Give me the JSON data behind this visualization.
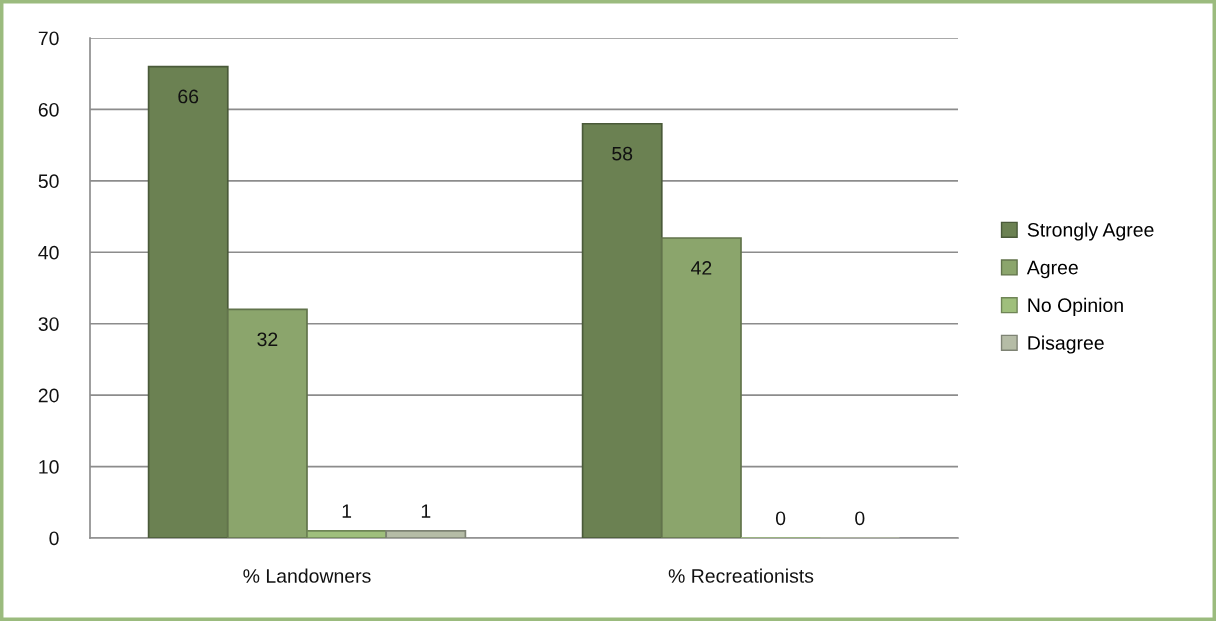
{
  "chart_data": {
    "type": "bar",
    "categories": [
      "% Landowners",
      "% Recreationists"
    ],
    "series": [
      {
        "name": "Strongly Agree",
        "color": "#6b8152",
        "values": [
          66,
          58
        ]
      },
      {
        "name": "Agree",
        "color": "#8ba56c",
        "values": [
          32,
          42
        ]
      },
      {
        "name": "No Opinion",
        "color": "#9fbf7c",
        "values": [
          1,
          0
        ]
      },
      {
        "name": "Disagree",
        "color": "#b5bca6",
        "values": [
          1,
          0
        ]
      }
    ],
    "ylim": [
      0,
      70
    ],
    "yticks": [
      0,
      10,
      20,
      30,
      40,
      50,
      60,
      70
    ],
    "grid": "y",
    "legend": "right",
    "data_labels": true
  }
}
